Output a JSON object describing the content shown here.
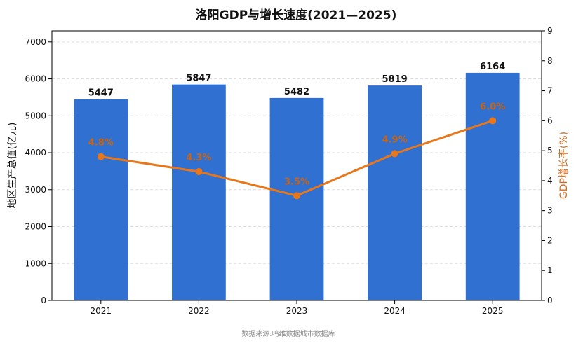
{
  "chart_data": {
    "type": "bar",
    "title": "洛阳GDP与增长速度(2021—2025)",
    "categories": [
      "2021",
      "2022",
      "2023",
      "2024",
      "2025"
    ],
    "series": [
      {
        "name": "地区生产总值(亿元)",
        "type": "bar",
        "axis": "left",
        "values": [
          5447,
          5847,
          5482,
          5819,
          6164
        ],
        "labels": [
          "5447",
          "5847",
          "5482",
          "5819",
          "6164"
        ]
      },
      {
        "name": "GDP增长率(%)",
        "type": "line",
        "axis": "right",
        "values": [
          4.8,
          4.3,
          3.5,
          4.9,
          6.0
        ],
        "labels": [
          "4.8%",
          "4.3%",
          "3.5%",
          "4.9%",
          "6.0%"
        ]
      }
    ],
    "ylabel": "地区生产总值(亿元)",
    "y2label": "GDP增长率(%)",
    "ylim": [
      0,
      7300
    ],
    "y2lim": [
      0,
      9
    ],
    "yticks": [
      "0",
      "1000",
      "2000",
      "3000",
      "4000",
      "5000",
      "6000",
      "7000"
    ],
    "y2ticks": [
      "0",
      "1",
      "2",
      "3",
      "4",
      "5",
      "6",
      "7",
      "8",
      "9"
    ],
    "grid": true,
    "source": "数据来源:鸣维数据城市数据库",
    "colors": {
      "bar": "#2f70d0",
      "line": "#e8761a",
      "point_label": "#c86414",
      "y2label": "#d2691e"
    }
  }
}
